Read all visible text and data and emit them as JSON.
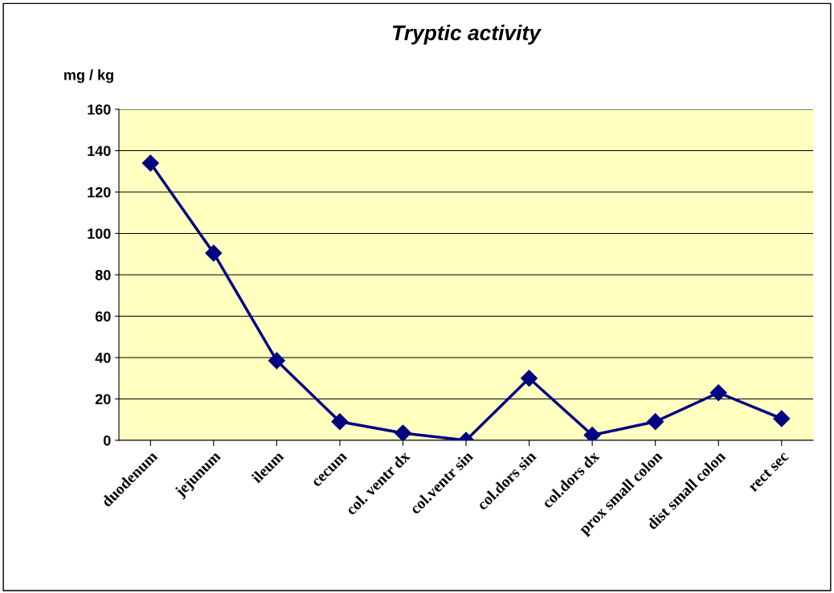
{
  "chart_data": {
    "type": "line",
    "title": "Tryptic activity",
    "ylabel": "mg / kg",
    "categories": [
      "duodenum",
      "jejunum",
      "ileum",
      "cecum",
      "col. ventr dx",
      "col.ventr sin",
      "col.dors sin",
      "col.dors dx",
      "prox small colon",
      "dist small colon",
      "rect sec"
    ],
    "series": [
      {
        "color": "#000080",
        "values": [
          134,
          90.5,
          38.5,
          9,
          3.5,
          0,
          30,
          2.5,
          9,
          23,
          10.5
        ]
      }
    ],
    "ylim": [
      0,
      160
    ],
    "yticks": [
      0,
      20,
      40,
      60,
      80,
      100,
      120,
      140,
      160
    ],
    "grid": "y",
    "marker": "diamond",
    "line_style": "solid",
    "legend": false
  }
}
